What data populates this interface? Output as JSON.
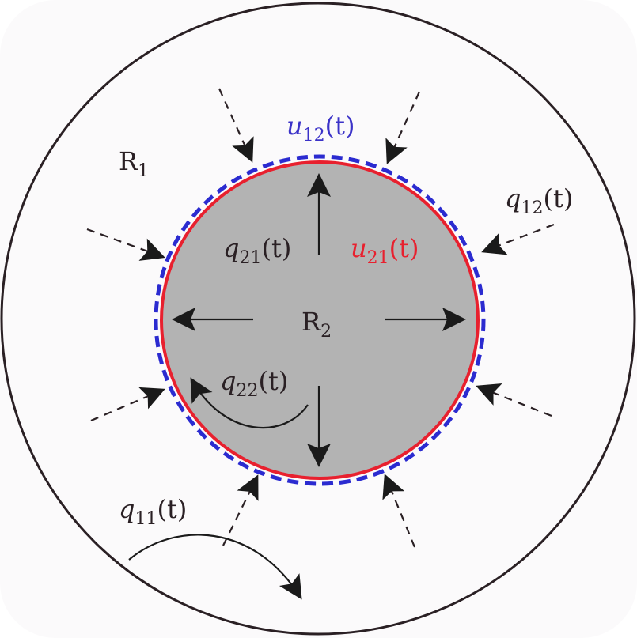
{
  "diagram": {
    "colors": {
      "outer_boundary": "#2a2024",
      "inner_fill": "#b3b3b3",
      "inner_boundary": "#e8202e",
      "dashed_boundary": "#2b2bd0",
      "arrows": "#1a1a1a"
    },
    "labels": {
      "region_outer": {
        "main": "R",
        "sub": "1"
      },
      "region_inner": {
        "main": "R",
        "sub": "2"
      },
      "u12": {
        "main": "u",
        "sub": "12",
        "arg": "(t)"
      },
      "u21": {
        "main": "u",
        "sub": "21",
        "arg": "(t)"
      },
      "q11": {
        "main": "q",
        "sub": "11",
        "arg": "(t)"
      },
      "q12": {
        "main": "q",
        "sub": "12",
        "arg": "(t)"
      },
      "q21": {
        "main": "q",
        "sub": "21",
        "arg": "(t)"
      },
      "q22": {
        "main": "q",
        "sub": "22",
        "arg": "(t)"
      }
    }
  }
}
